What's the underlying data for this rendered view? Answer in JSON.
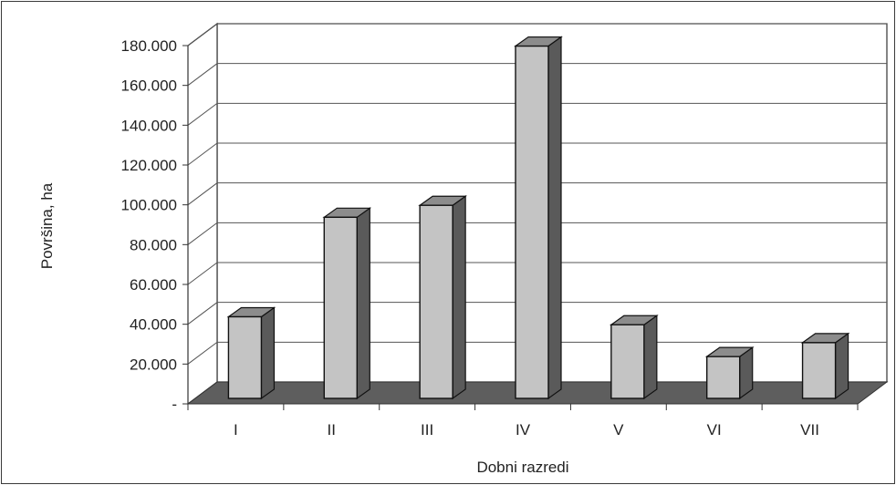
{
  "chart_data": {
    "type": "bar",
    "title": "",
    "xlabel": "Dobni razredi",
    "ylabel": "Površina, ha",
    "categories": [
      "I",
      "II",
      "III",
      "IV",
      "V",
      "VI",
      "VII"
    ],
    "values": [
      41000,
      91000,
      97000,
      177000,
      37000,
      21000,
      28000
    ],
    "y_ticks": [
      "-",
      "20.000",
      "40.000",
      "60.000",
      "80.000",
      "100.000",
      "120.000",
      "140.000",
      "160.000",
      "180.000"
    ],
    "ylim": [
      0,
      180000
    ],
    "grid": true,
    "style": "3d-column",
    "colors": {
      "bar_front": "#c4c4c4",
      "bar_side": "#5a5a5a",
      "bar_top": "#8c8c8c",
      "floor": "#5e5e5e",
      "wall": "#ffffff",
      "grid": "#555555"
    }
  }
}
